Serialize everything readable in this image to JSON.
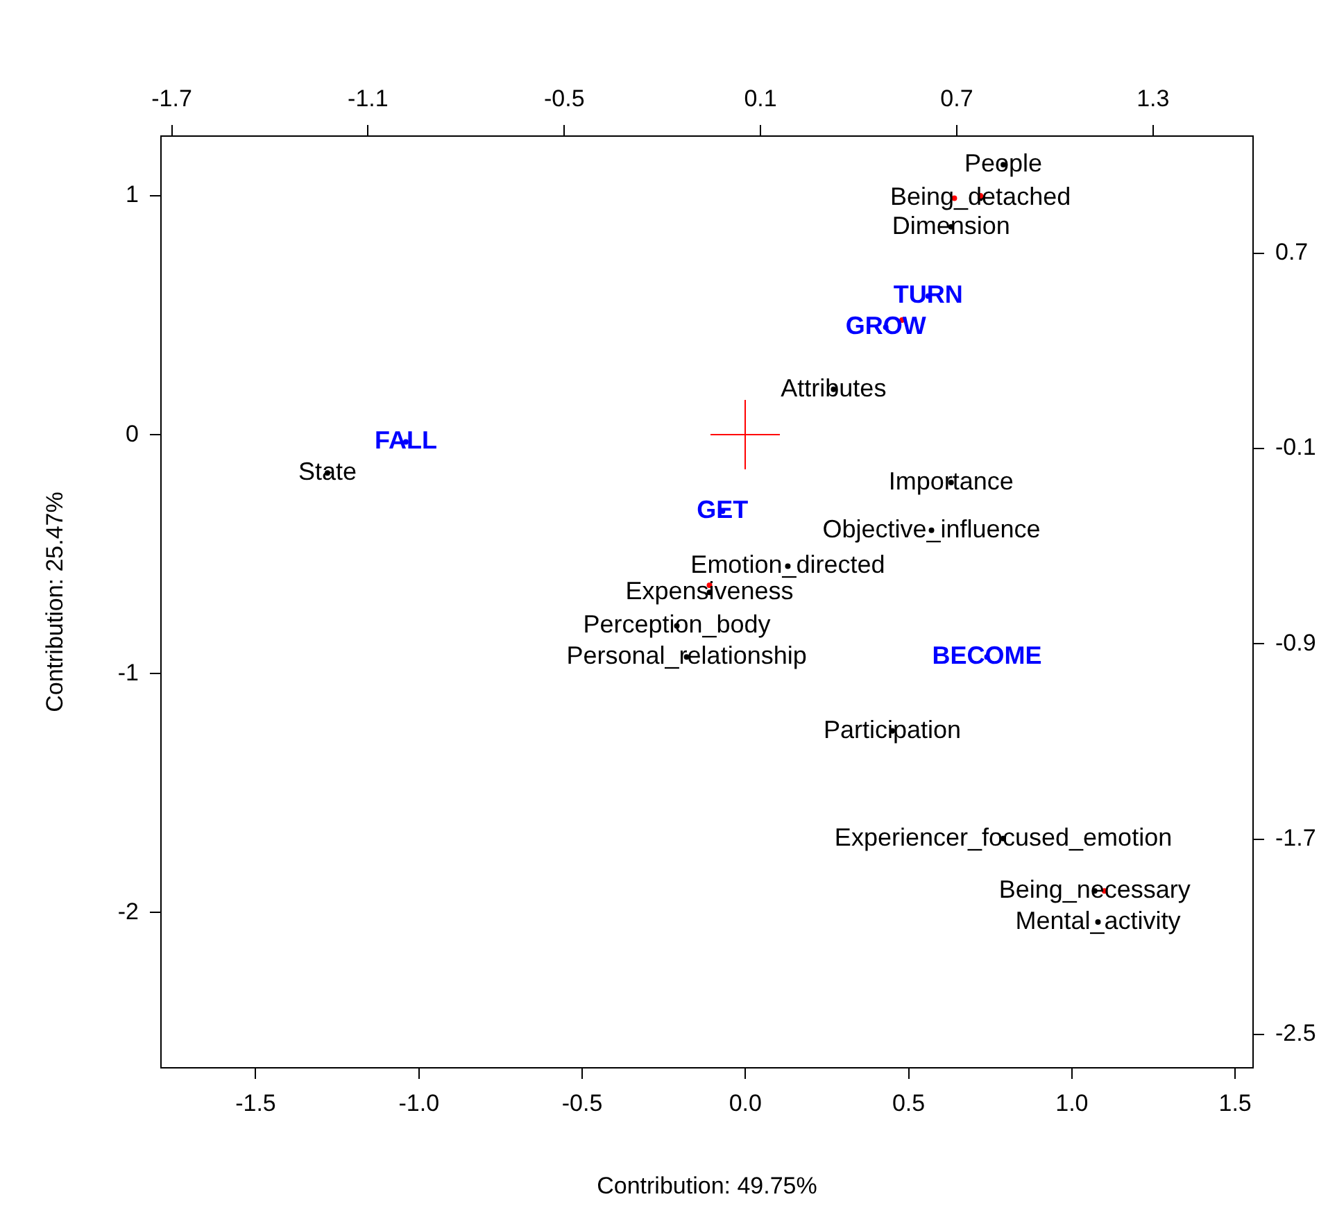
{
  "chart_data": {
    "type": "scatter",
    "xlabel": "Contribution: 49.75%",
    "ylabel": "Contribution: 25.47%",
    "xlim": [
      -1.79,
      1.555
    ],
    "xticks": [
      -1.5,
      {
        "value": -1,
        "label": "-1.0"
      },
      -0.5,
      {
        "value": 0,
        "label": "0.0"
      },
      0.5,
      {
        "value": 1,
        "label": "1.0"
      },
      1.5
    ],
    "ylim": [
      -2.65,
      1.25
    ],
    "yticks": [
      -2,
      -1,
      0,
      1
    ],
    "x2lim": [
      -1.733,
      1.606
    ],
    "x2ticks": [
      -1.7,
      -1.1,
      -0.5,
      0.1,
      0.7,
      1.3
    ],
    "y2lim": [
      -2.637,
      1.18
    ],
    "y2ticks": [
      -2.5,
      -1.7,
      -0.9,
      -0.1,
      0.7
    ],
    "grid": false,
    "legend": false,
    "series": [
      {
        "color": "#000000",
        "x": [
          0.79,
          0.72,
          0.63,
          0.27,
          -1.28,
          0.63,
          0.57,
          0.13,
          -0.11,
          -0.21,
          -0.18,
          0.45,
          0.79,
          1.07,
          1.08
        ],
        "values": [
          1.13,
          0.99,
          0.87,
          0.19,
          -0.16,
          -0.2,
          -0.4,
          -0.55,
          -0.66,
          -0.8,
          -0.93,
          -1.24,
          -1.69,
          -1.91,
          -2.04
        ],
        "value_labels": [
          "People",
          "Being_detached",
          "Dimension",
          "Attributes",
          "State",
          "Importance",
          "Objective_influence",
          "Emotion_directed",
          "Expensiveness",
          "Perception_body",
          "Personal_relationship",
          "Participation",
          "Experiencer_focused_emotion",
          "Being_necessary",
          "Mental_activity"
        ]
      },
      {
        "color": "#0000ff",
        "x": [
          0.56,
          0.43,
          -1.04,
          -0.07,
          0.74
        ],
        "values": [
          0.58,
          0.45,
          -0.03,
          -0.32,
          -0.93
        ],
        "value_labels": [
          "TURN",
          "GROW",
          "FALL",
          "GET",
          "BECOME"
        ]
      },
      {
        "color": "#ff0000",
        "x": [
          0.72,
          0.64,
          0.48,
          -0.11,
          1.1
        ],
        "values": [
          1.0,
          0.99,
          0.48,
          -0.63,
          -1.91
        ]
      }
    ]
  }
}
